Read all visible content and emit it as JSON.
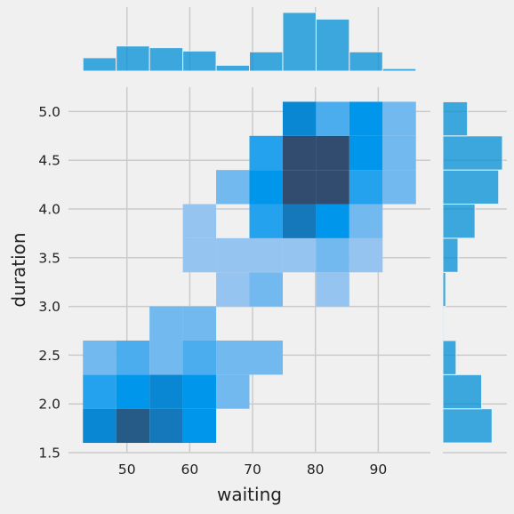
{
  "chart_data": {
    "type": "heatmap",
    "title": "",
    "xlabel": "waiting",
    "ylabel": "duration",
    "xlim": [
      40.7,
      98.3
    ],
    "ylim": [
      1.5,
      5.25
    ],
    "x_ticks": [
      50,
      60,
      70,
      80,
      90
    ],
    "y_ticks": [
      1.5,
      2.0,
      2.5,
      3.0,
      3.5,
      4.0,
      4.5,
      5.0
    ],
    "x_tick_labels": [
      "50",
      "60",
      "70",
      "80",
      "90"
    ],
    "y_tick_labels": [
      "1.5",
      "2.0",
      "2.5",
      "3.0",
      "3.5",
      "4.0",
      "4.5",
      "5.0"
    ],
    "grid": true,
    "x_bin_edges": [
      43.0,
      48.3,
      53.6,
      58.9,
      64.2,
      69.5,
      74.8,
      80.1,
      85.4,
      90.7,
      96.0
    ],
    "y_bin_edges": [
      1.6,
      1.95,
      2.3,
      2.65,
      3.0,
      3.35,
      3.7,
      4.05,
      4.4,
      4.75,
      5.1
    ],
    "counts": [
      [
        6,
        9,
        7,
        5,
        0,
        0,
        0,
        0,
        0,
        0
      ],
      [
        4,
        5,
        6,
        5,
        2,
        0,
        0,
        0,
        0,
        0
      ],
      [
        2,
        3,
        2,
        3,
        2,
        2,
        0,
        0,
        0,
        0
      ],
      [
        0,
        0,
        2,
        2,
        0,
        0,
        0,
        0,
        0,
        0
      ],
      [
        0,
        0,
        0,
        0,
        1,
        2,
        0,
        1,
        0,
        0
      ],
      [
        0,
        0,
        0,
        1,
        1,
        1,
        1,
        2,
        1,
        0
      ],
      [
        0,
        0,
        0,
        1,
        0,
        4,
        7,
        5,
        2,
        0
      ],
      [
        0,
        0,
        0,
        0,
        2,
        5,
        10,
        10,
        4,
        2
      ],
      [
        0,
        0,
        0,
        0,
        0,
        4,
        10,
        10,
        5,
        2
      ],
      [
        0,
        0,
        0,
        0,
        0,
        0,
        6,
        3,
        5,
        2
      ]
    ],
    "marginal_x": {
      "bin_edges": [
        43.0,
        48.3,
        53.6,
        58.9,
        64.2,
        69.5,
        74.8,
        80.1,
        85.4,
        90.7,
        96.0
      ],
      "counts": [
        16,
        30,
        28,
        24,
        7,
        23,
        70,
        62,
        23,
        3
      ]
    },
    "marginal_y": {
      "bin_edges": [
        1.6,
        1.95,
        2.3,
        2.65,
        3.0,
        3.35,
        3.7,
        4.05,
        4.4,
        4.75,
        5.1
      ],
      "counts": [
        52,
        41,
        14,
        1,
        3,
        16,
        34,
        59,
        63,
        26
      ]
    },
    "color": "#008fd5"
  }
}
